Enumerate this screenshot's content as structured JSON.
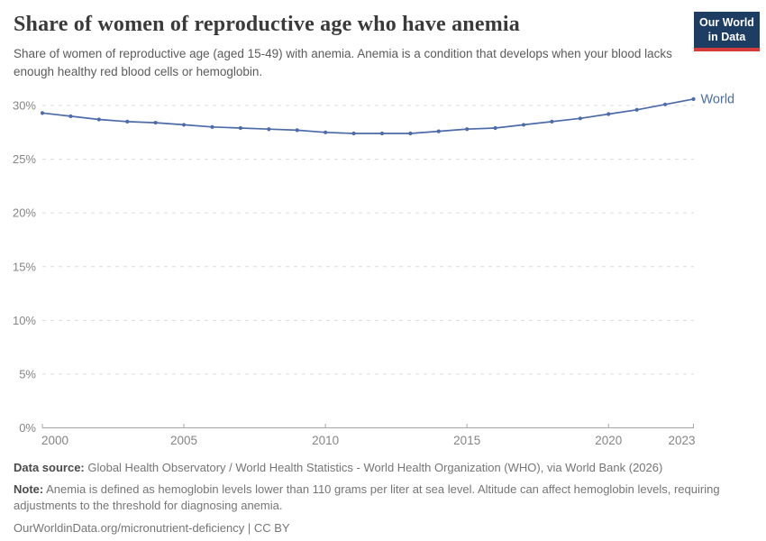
{
  "header": {
    "title": "Share of women of reproductive age who have anemia",
    "subtitle": "Share of women of reproductive age (aged 15-49) with anemia. Anemia is a condition that develops when your blood lacks enough healthy red blood cells or hemoglobin.",
    "logo": {
      "line1": "Our World",
      "line2": "in Data",
      "bg_color": "#1d3d63",
      "stripe_color": "#d73c3c"
    }
  },
  "chart_data": {
    "type": "line",
    "title": "Share of women of reproductive age who have anemia",
    "x": [
      2000,
      2001,
      2002,
      2003,
      2004,
      2005,
      2006,
      2007,
      2008,
      2009,
      2010,
      2011,
      2012,
      2013,
      2014,
      2015,
      2016,
      2017,
      2018,
      2019,
      2020,
      2021,
      2022,
      2023
    ],
    "series": [
      {
        "name": "World",
        "color": "#4c6ba8",
        "values": [
          29.3,
          29.0,
          28.7,
          28.5,
          28.4,
          28.2,
          28.0,
          27.9,
          27.8,
          27.7,
          27.5,
          27.4,
          27.4,
          27.4,
          27.6,
          27.8,
          27.9,
          28.2,
          28.5,
          28.8,
          29.2,
          29.6,
          30.1,
          30.6
        ]
      }
    ],
    "xlabel": "",
    "ylabel": "",
    "xlim": [
      2000,
      2023
    ],
    "ylim": [
      0,
      30
    ],
    "xticks": {
      "values": [
        2000,
        2005,
        2010,
        2015,
        2020,
        2023
      ],
      "labels": [
        "2000",
        "2005",
        "2010",
        "2015",
        "2020",
        "2023"
      ]
    },
    "yticks": {
      "values": [
        0,
        5,
        10,
        15,
        20,
        25,
        30
      ],
      "labels": [
        "0%",
        "5%",
        "10%",
        "15%",
        "20%",
        "25%",
        "30%"
      ]
    },
    "grid": "horizontal dashed",
    "legend_position": "end-of-line label",
    "colors": {
      "grid": "#dcdcdc",
      "axis": "#a5a5a5",
      "tick_labels": "#858585"
    }
  },
  "footer": {
    "data_source_label": "Data source:",
    "data_source_text": " Global Health Observatory / World Health Statistics - World Health Organization (WHO), via World Bank (2026)",
    "note_label": "Note:",
    "note_text": " Anemia is defined as hemoglobin levels lower than 110 grams per liter at sea level. Altitude can affect hemoglobin levels, requiring adjustments to the threshold for diagnosing anemia.",
    "attribution": "OurWorldinData.org/micronutrient-deficiency | CC BY"
  }
}
